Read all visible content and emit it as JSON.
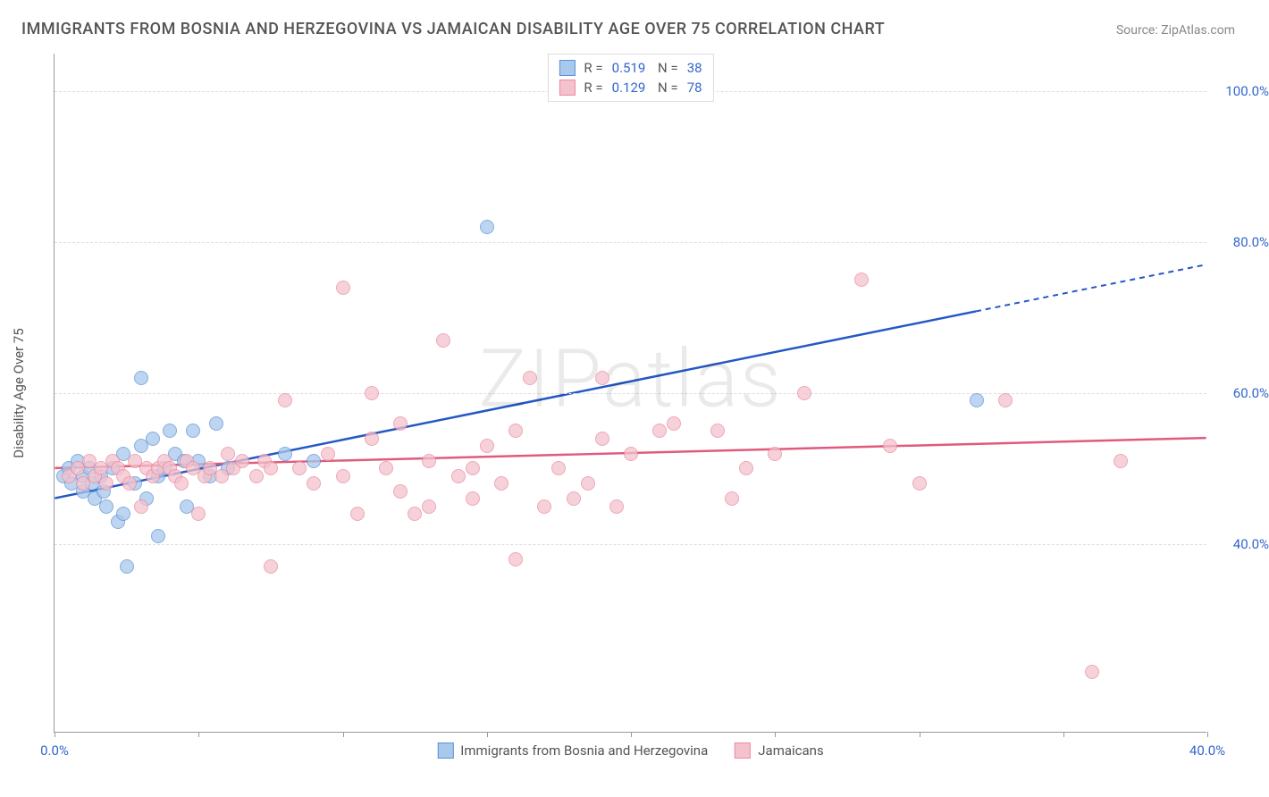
{
  "title": "IMMIGRANTS FROM BOSNIA AND HERZEGOVINA VS JAMAICAN DISABILITY AGE OVER 75 CORRELATION CHART",
  "source": "Source: ZipAtlas.com",
  "watermark": "ZIPatlas",
  "chart": {
    "type": "scatter",
    "background": "#ffffff",
    "grid_color": "#dddddd",
    "axis_color": "#999999",
    "tick_label_color": "#3366cc",
    "text_color": "#555555",
    "y_label": "Disability Age Over 75",
    "x_range": [
      0,
      40
    ],
    "y_range": [
      15,
      105
    ],
    "y_ticks": [
      {
        "v": 40,
        "label": "40.0%"
      },
      {
        "v": 60,
        "label": "60.0%"
      },
      {
        "v": 80,
        "label": "80.0%"
      },
      {
        "v": 100,
        "label": "100.0%"
      }
    ],
    "x_ticks_at": [
      0,
      5,
      10,
      15,
      20,
      25,
      30,
      35,
      40
    ],
    "x_tick_labels": [
      {
        "v": 0,
        "label": "0.0%"
      },
      {
        "v": 40,
        "label": "40.0%"
      }
    ],
    "series": [
      {
        "name": "Immigrants from Bosnia and Herzegovina",
        "short": "bosnia",
        "fill": "#a8c8ec",
        "stroke": "#5b93d4",
        "line_color": "#2458c5",
        "r_value": "0.519",
        "n_value": "38",
        "trend": {
          "x1": 0,
          "y1": 46,
          "x2": 40,
          "y2": 77,
          "solid_until_x": 32
        },
        "points": [
          [
            0.3,
            49
          ],
          [
            0.5,
            50
          ],
          [
            0.6,
            48
          ],
          [
            0.8,
            51
          ],
          [
            1.0,
            47
          ],
          [
            1.0,
            49
          ],
          [
            1.2,
            50
          ],
          [
            1.3,
            48
          ],
          [
            1.4,
            46
          ],
          [
            1.6,
            49
          ],
          [
            1.7,
            47
          ],
          [
            1.8,
            45
          ],
          [
            2.0,
            50
          ],
          [
            2.2,
            43
          ],
          [
            2.4,
            44
          ],
          [
            2.4,
            52
          ],
          [
            2.5,
            37
          ],
          [
            2.8,
            48
          ],
          [
            3.0,
            53
          ],
          [
            3.0,
            62
          ],
          [
            3.2,
            46
          ],
          [
            3.4,
            54
          ],
          [
            3.6,
            49
          ],
          [
            3.6,
            41
          ],
          [
            3.8,
            50
          ],
          [
            4.0,
            55
          ],
          [
            4.2,
            52
          ],
          [
            4.5,
            51
          ],
          [
            4.6,
            45
          ],
          [
            4.8,
            55
          ],
          [
            5.0,
            51
          ],
          [
            5.4,
            49
          ],
          [
            5.6,
            56
          ],
          [
            6.0,
            50
          ],
          [
            8.0,
            52
          ],
          [
            9.0,
            51
          ],
          [
            15.0,
            82
          ],
          [
            32.0,
            59
          ]
        ]
      },
      {
        "name": "Jamaicans",
        "short": "jamaicans",
        "fill": "#f4c2cd",
        "stroke": "#e98ba0",
        "line_color": "#e05a7d",
        "r_value": "0.129",
        "n_value": "78",
        "trend": {
          "x1": 0,
          "y1": 50,
          "x2": 40,
          "y2": 54,
          "solid_until_x": 40
        },
        "points": [
          [
            0.5,
            49
          ],
          [
            0.8,
            50
          ],
          [
            1.0,
            48
          ],
          [
            1.2,
            51
          ],
          [
            1.4,
            49
          ],
          [
            1.6,
            50
          ],
          [
            1.8,
            48
          ],
          [
            2.0,
            51
          ],
          [
            2.2,
            50
          ],
          [
            2.4,
            49
          ],
          [
            2.6,
            48
          ],
          [
            2.8,
            51
          ],
          [
            3.0,
            45
          ],
          [
            3.2,
            50
          ],
          [
            3.4,
            49
          ],
          [
            3.6,
            50
          ],
          [
            3.8,
            51
          ],
          [
            4.0,
            50
          ],
          [
            4.2,
            49
          ],
          [
            4.4,
            48
          ],
          [
            4.6,
            51
          ],
          [
            4.8,
            50
          ],
          [
            5.0,
            44
          ],
          [
            5.2,
            49
          ],
          [
            5.4,
            50
          ],
          [
            5.8,
            49
          ],
          [
            6.0,
            52
          ],
          [
            6.2,
            50
          ],
          [
            6.5,
            51
          ],
          [
            7.0,
            49
          ],
          [
            7.3,
            51
          ],
          [
            7.5,
            50
          ],
          [
            7.5,
            37
          ],
          [
            8.0,
            59
          ],
          [
            8.5,
            50
          ],
          [
            9.0,
            48
          ],
          [
            9.5,
            52
          ],
          [
            10.0,
            49
          ],
          [
            10.0,
            74
          ],
          [
            10.5,
            44
          ],
          [
            11.0,
            60
          ],
          [
            11.0,
            54
          ],
          [
            11.5,
            50
          ],
          [
            12.0,
            47
          ],
          [
            12.0,
            56
          ],
          [
            12.5,
            44
          ],
          [
            13.0,
            51
          ],
          [
            13.0,
            45
          ],
          [
            13.5,
            67
          ],
          [
            14.0,
            49
          ],
          [
            14.5,
            50
          ],
          [
            14.5,
            46
          ],
          [
            15.0,
            53
          ],
          [
            15.5,
            48
          ],
          [
            16.0,
            55
          ],
          [
            16.0,
            38
          ],
          [
            16.5,
            62
          ],
          [
            17.0,
            45
          ],
          [
            17.5,
            50
          ],
          [
            18.0,
            46
          ],
          [
            18.5,
            48
          ],
          [
            19.0,
            62
          ],
          [
            19.0,
            54
          ],
          [
            19.5,
            45
          ],
          [
            20.0,
            52
          ],
          [
            21.0,
            55
          ],
          [
            21.5,
            56
          ],
          [
            23.0,
            55
          ],
          [
            23.5,
            46
          ],
          [
            24.0,
            50
          ],
          [
            25.0,
            52
          ],
          [
            26.0,
            60
          ],
          [
            28.0,
            75
          ],
          [
            29.0,
            53
          ],
          [
            30.0,
            48
          ],
          [
            33.0,
            59
          ],
          [
            36.0,
            23
          ],
          [
            37.0,
            51
          ]
        ]
      }
    ]
  },
  "legend_bottom": [
    {
      "swatch_fill": "#a8c8ec",
      "swatch_stroke": "#5b93d4",
      "label": "Immigrants from Bosnia and Herzegovina"
    },
    {
      "swatch_fill": "#f4c2cd",
      "swatch_stroke": "#e98ba0",
      "label": "Jamaicans"
    }
  ]
}
